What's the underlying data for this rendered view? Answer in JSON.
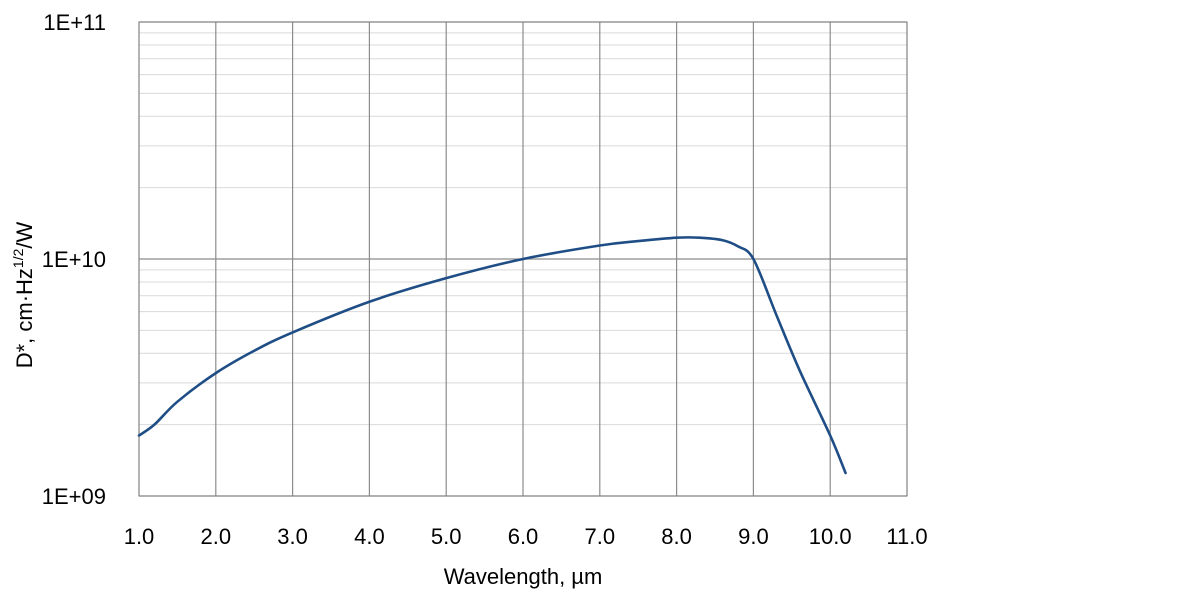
{
  "chart_data": {
    "type": "line",
    "title": "",
    "xlabel": "Wavelength, µm",
    "ylabel": {
      "prefix": "D*, cm·Hz",
      "superscript": "1/2",
      "suffix": "/W"
    },
    "xlim": [
      1.0,
      11.0
    ],
    "ylim": [
      1000000000,
      100000000000
    ],
    "y_scale": "log",
    "grid": true,
    "x_ticks": [
      {
        "value": 1,
        "label": "1.0"
      },
      {
        "value": 2,
        "label": "2.0"
      },
      {
        "value": 3,
        "label": "3.0"
      },
      {
        "value": 4,
        "label": "4.0"
      },
      {
        "value": 5,
        "label": "5.0"
      },
      {
        "value": 6,
        "label": "6.0"
      },
      {
        "value": 7,
        "label": "7.0"
      },
      {
        "value": 8,
        "label": "8.0"
      },
      {
        "value": 9,
        "label": "9.0"
      },
      {
        "value": 10,
        "label": "10.0"
      },
      {
        "value": 11,
        "label": "11.0"
      }
    ],
    "y_ticks": [
      {
        "value": 1000000000,
        "label": "1E+09"
      },
      {
        "value": 10000000000,
        "label": "1E+10"
      },
      {
        "value": 100000000000,
        "label": "1E+11"
      }
    ],
    "series": [
      {
        "color": "#1f4e86",
        "x": [
          1.0,
          1.2,
          1.5,
          2.0,
          2.5,
          3.0,
          4.0,
          5.0,
          6.0,
          7.0,
          7.5,
          8.0,
          8.3,
          8.6,
          8.8,
          9.0,
          9.3,
          9.6,
          10.0,
          10.2
        ],
        "y": [
          1800000000,
          2000000000,
          2500000000,
          3300000000,
          4100000000,
          4900000000,
          6600000000,
          8300000000,
          10000000000,
          11400000000,
          11900000000,
          12300000000,
          12300000000,
          12000000000,
          11300000000,
          10000000000,
          5800000000,
          3400000000,
          1800000000,
          1250000000
        ]
      }
    ]
  }
}
